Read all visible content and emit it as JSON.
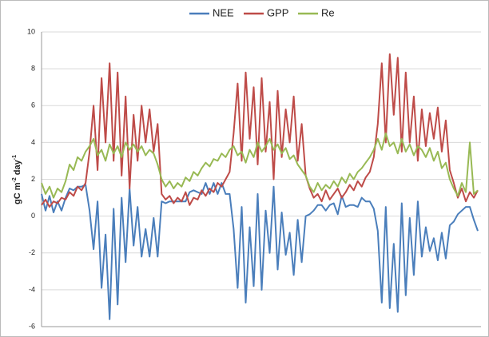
{
  "chart_data": {
    "type": "line",
    "y_label": [
      "gC m",
      "-2",
      " day",
      "-1"
    ],
    "ylim": [
      -6,
      10
    ],
    "yticks": [
      -6,
      -4,
      -2,
      0,
      2,
      4,
      6,
      8,
      10
    ],
    "grid": true,
    "legend": "top",
    "series": [
      {
        "name": "NEE",
        "color": "#4a7ebb",
        "values": [
          1.2,
          0.3,
          1.1,
          0.2,
          0.8,
          0.3,
          1.0,
          1.5,
          1.4,
          1.6,
          1.6,
          1.7,
          0.3,
          -1.8,
          0.8,
          -3.9,
          -1.0,
          -5.6,
          0.4,
          -4.8,
          1.0,
          -2.5,
          1.5,
          -1.6,
          0.5,
          -2.2,
          -0.7,
          -2.2,
          -0.1,
          -2.2,
          0.8,
          0.7,
          0.8,
          0.8,
          0.8,
          0.8,
          0.8,
          1.3,
          1.4,
          1.3,
          1.2,
          1.8,
          1.2,
          1.8,
          1.2,
          1.8,
          1.2,
          1.2,
          -0.7,
          -3.9,
          0.5,
          -4.7,
          -0.6,
          -3.8,
          1.2,
          -4.0,
          0.3,
          -2.0,
          1.6,
          -2.9,
          0.2,
          -2.1,
          -0.9,
          -3.2,
          -0.2,
          -2.5,
          0.0,
          0.1,
          0.3,
          0.6,
          0.6,
          0.3,
          0.6,
          0.7,
          0.1,
          1.1,
          0.5,
          0.6,
          0.6,
          0.5,
          1.0,
          0.8,
          0.8,
          0.4,
          -0.8,
          -4.7,
          0.5,
          -5.0,
          -1.5,
          -5.2,
          0.7,
          -4.3,
          -0.1,
          -3.2,
          0.8,
          -2.2,
          -0.6,
          -1.9,
          -1.2,
          -2.4,
          -0.9,
          -2.3,
          -0.5,
          -0.3,
          0.1,
          0.3,
          0.5,
          0.5,
          -0.2,
          -0.8
        ]
      },
      {
        "name": "GPP",
        "color": "#be4b48",
        "values": [
          0.6,
          0.9,
          0.5,
          0.8,
          0.7,
          1.0,
          0.9,
          1.3,
          1.1,
          1.6,
          1.4,
          1.8,
          3.5,
          6.0,
          2.5,
          7.5,
          4.0,
          8.3,
          3.0,
          7.8,
          2.2,
          6.5,
          1.5,
          5.5,
          3.0,
          6.0,
          4.0,
          5.8,
          3.5,
          5.0,
          1.2,
          0.9,
          1.1,
          0.7,
          1.0,
          0.8,
          1.3,
          0.6,
          1.0,
          0.9,
          1.4,
          1.1,
          1.5,
          1.3,
          1.8,
          1.6,
          2.0,
          2.4,
          4.5,
          7.2,
          3.0,
          7.8,
          4.2,
          7.0,
          2.8,
          7.5,
          3.5,
          6.2,
          2.0,
          6.8,
          3.2,
          5.8,
          4.0,
          6.5,
          3.0,
          5.0,
          2.2,
          1.5,
          1.0,
          1.2,
          0.8,
          1.4,
          0.9,
          1.2,
          1.5,
          1.0,
          1.3,
          1.7,
          1.4,
          1.9,
          1.6,
          2.1,
          2.4,
          3.2,
          5.0,
          8.3,
          4.0,
          8.8,
          5.5,
          8.6,
          3.5,
          7.8,
          4.0,
          6.5,
          3.0,
          5.8,
          3.8,
          5.6,
          4.2,
          5.9,
          3.5,
          5.2,
          2.5,
          1.8,
          1.0,
          1.5,
          0.8,
          1.3,
          1.0,
          1.4
        ]
      },
      {
        "name": "Re",
        "color": "#98b954",
        "values": [
          1.8,
          1.2,
          1.6,
          1.0,
          1.5,
          1.3,
          1.9,
          2.8,
          2.5,
          3.2,
          3.0,
          3.5,
          3.8,
          4.2,
          3.3,
          3.6,
          3.0,
          3.9,
          3.4,
          3.8,
          3.2,
          4.0,
          3.6,
          3.9,
          3.5,
          3.8,
          3.3,
          3.6,
          3.4,
          2.8,
          2.0,
          1.6,
          1.9,
          1.5,
          1.8,
          1.6,
          2.1,
          1.9,
          2.4,
          2.2,
          2.6,
          2.9,
          2.7,
          3.1,
          3.0,
          3.4,
          3.2,
          3.6,
          3.8,
          3.3,
          3.5,
          2.9,
          3.6,
          3.2,
          4.0,
          3.5,
          3.8,
          4.2,
          3.6,
          3.9,
          3.4,
          3.7,
          3.1,
          3.3,
          2.8,
          2.5,
          2.2,
          1.6,
          1.3,
          1.8,
          1.4,
          1.7,
          1.5,
          1.9,
          1.6,
          2.1,
          1.8,
          2.3,
          2.0,
          2.4,
          2.6,
          2.9,
          3.2,
          3.6,
          4.2,
          3.6,
          4.5,
          3.8,
          4.0,
          3.4,
          4.2,
          3.5,
          3.9,
          3.3,
          3.8,
          3.6,
          3.2,
          3.7,
          3.0,
          3.5,
          2.6,
          2.9,
          2.0,
          1.5,
          1.1,
          1.8,
          1.3,
          4.0,
          1.2,
          1.4
        ]
      }
    ]
  }
}
